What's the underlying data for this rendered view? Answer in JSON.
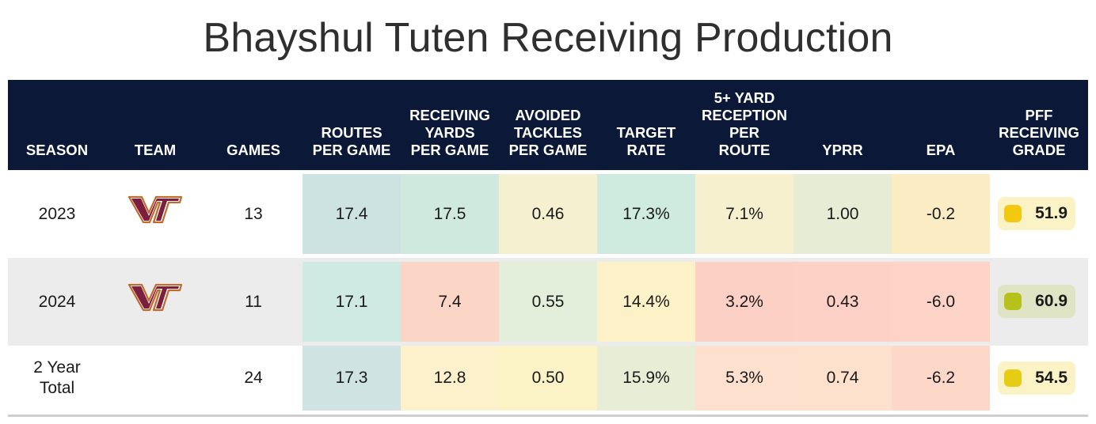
{
  "title": "Bhayshul Tuten Receiving Production",
  "headers": {
    "season": "SEASON",
    "team": "TEAM",
    "games": "GAMES",
    "routes": "ROUTES\nPER GAME",
    "rec_yards": "RECEIVING\nYARDS\nPER GAME",
    "avoided": "AVOIDED\nTACKLES\nPER GAME",
    "target": "TARGET\nRATE",
    "five_plus": "5+ YARD\nRECEPTION\nPER\nROUTE",
    "yprr": "YPRR",
    "epa": "EPA",
    "pff": "PFF\nRECEIVING\nGRADE"
  },
  "team_logo_text": "VT",
  "rows": [
    {
      "season": "2023",
      "games": "13",
      "routes": "17.4",
      "rec_yards": "17.5",
      "avoided": "0.46",
      "target": "17.3%",
      "five_plus": "7.1%",
      "yprr": "1.00",
      "epa": "-0.2",
      "grade": "51.9",
      "colors": {
        "routes": "#cde3e2",
        "rec_yards": "#cfe9df",
        "avoided": "#f5f0cf",
        "target": "#cfeade",
        "five_plus": "#f6f0cf",
        "yprr": "#e7ecd5",
        "epa": "#fbecc4",
        "grade_bg": "#fbf3c5",
        "grade_dot": "#f2c811"
      }
    },
    {
      "season": "2024",
      "games": "11",
      "routes": "17.1",
      "rec_yards": "7.4",
      "avoided": "0.55",
      "target": "14.4%",
      "five_plus": "3.2%",
      "yprr": "0.43",
      "epa": "-6.0",
      "grade": "60.9",
      "colors": {
        "routes": "#cfeae3",
        "rec_yards": "#fbd6c6",
        "avoided": "#e3eedb",
        "target": "#fdf1c8",
        "five_plus": "#fdd0c6",
        "yprr": "#fdd1c6",
        "epa": "#fdd3c8",
        "grade_bg": "#dfe5c4",
        "grade_dot": "#b6c21b"
      }
    },
    {
      "season": "2 Year\nTotal",
      "games": "24",
      "routes": "17.3",
      "rec_yards": "12.8",
      "avoided": "0.50",
      "target": "15.9%",
      "five_plus": "5.3%",
      "yprr": "0.74",
      "epa": "-6.2",
      "grade": "54.5",
      "colors": {
        "routes": "#cfe3e3",
        "rec_yards": "#fcf1cb",
        "avoided": "#fbf2c6",
        "target": "#e8eed6",
        "five_plus": "#fde0cd",
        "yprr": "#fde1cc",
        "epa": "#fdd8c9",
        "grade_bg": "#fbf3c5",
        "grade_dot": "#e6cc14"
      }
    }
  ]
}
